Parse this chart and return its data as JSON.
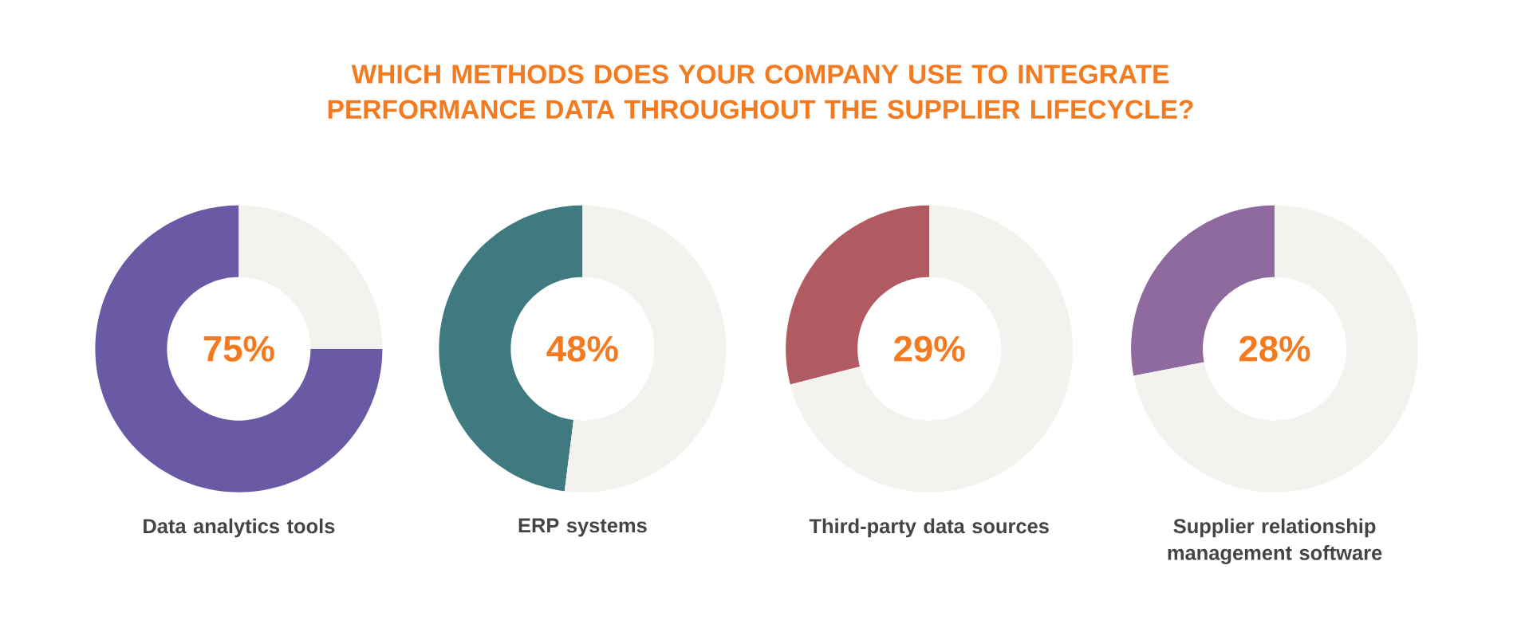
{
  "chart_data": [
    {
      "type": "donut",
      "title": "WHICH METHODS DOES YOUR COMPANY USE TO INTEGRATE PERFORMANCE DATA THROUGHOUT THE SUPPLIER LIFECYCLE?",
      "xlabel": "Data analytics tools",
      "categories": [
        null,
        null
      ],
      "values": [
        75,
        25
      ],
      "colors": [
        "#6a5aa6",
        "#f4f2ef"
      ],
      "annotations": [
        "75%"
      ]
    },
    {
      "type": "donut",
      "xlabel": "ERP systems",
      "categories": [
        null,
        null
      ],
      "values": [
        48,
        52
      ],
      "colors": [
        "#3f7a80",
        "#f4f2ef"
      ],
      "annotations": [
        "48%"
      ]
    },
    {
      "type": "donut",
      "xlabel": "Third-party data sources",
      "categories": [
        null,
        null
      ],
      "values": [
        29,
        71
      ],
      "colors": [
        "#b25a62",
        "#f4f2ef"
      ],
      "annotations": [
        "29%"
      ]
    },
    {
      "type": "donut",
      "xlabel": "Supplier relationship management software",
      "categories": [
        null,
        null
      ],
      "values": [
        28,
        72
      ],
      "colors": [
        "#8e6a9e",
        "#f4f2ef"
      ],
      "annotations": [
        "28%"
      ]
    }
  ]
}
